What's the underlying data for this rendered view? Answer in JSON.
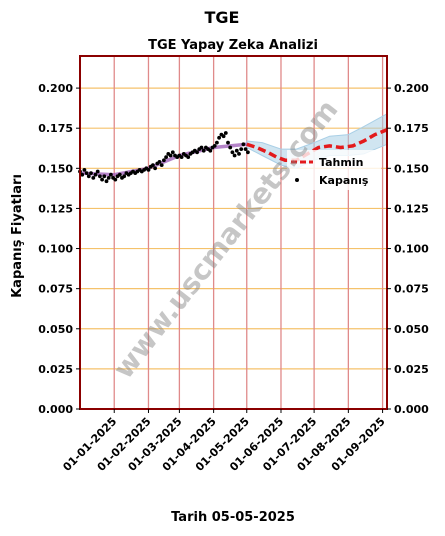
{
  "page_title": "TGE",
  "watermark": "www.uscmarkets.com",
  "colors": {
    "frame": "#8b0000",
    "hgrid": "#f5c26b",
    "vgrid": "#e08a8a",
    "observed": "#000000",
    "fitted": "#9b59b6",
    "forecast": "#e31a1c",
    "band": "#a9cfe6",
    "watermark": "#808080"
  },
  "chart_data": {
    "type": "line",
    "title": "TGE Yapay Zeka Analizi",
    "xlabel": "Tarih 05-05-2025",
    "ylabel": "Kapanış Fiyatları",
    "x_start": "2024-12-01",
    "x_end": "2025-09-05",
    "ylim": [
      0,
      0.22
    ],
    "yticks": [
      0.0,
      0.025,
      0.05,
      0.075,
      0.1,
      0.125,
      0.15,
      0.175,
      0.2
    ],
    "ytick_labels": [
      "0.000",
      "0.025",
      "0.050",
      "0.075",
      "0.100",
      "0.125",
      "0.150",
      "0.175",
      "0.200"
    ],
    "xticks": [
      "2025-01-01",
      "2025-02-01",
      "2025-03-01",
      "2025-04-01",
      "2025-05-01",
      "2025-06-01",
      "2025-07-01",
      "2025-08-01",
      "2025-09-01"
    ],
    "xtick_labels": [
      "01-01-2025",
      "01-02-2025",
      "01-03-2025",
      "01-04-2025",
      "01-05-2025",
      "01-06-2025",
      "01-07-2025",
      "01-08-2025",
      "01-09-2025"
    ],
    "grid": true,
    "legend_position": "center-right",
    "legend": [
      {
        "label": "Tahmin",
        "style": "dashed-line"
      },
      {
        "label": "Kapanış",
        "style": "dots"
      }
    ],
    "series": [
      {
        "name": "Kapanış",
        "style": "scatter",
        "points": [
          [
            "2024-12-01",
            0.148
          ],
          [
            "2024-12-03",
            0.146
          ],
          [
            "2024-12-05",
            0.149
          ],
          [
            "2024-12-07",
            0.147
          ],
          [
            "2024-12-09",
            0.145
          ],
          [
            "2024-12-11",
            0.147
          ],
          [
            "2024-12-13",
            0.144
          ],
          [
            "2024-12-15",
            0.146
          ],
          [
            "2024-12-17",
            0.148
          ],
          [
            "2024-12-19",
            0.145
          ],
          [
            "2024-12-21",
            0.143
          ],
          [
            "2024-12-23",
            0.145
          ],
          [
            "2024-12-25",
            0.142
          ],
          [
            "2024-12-27",
            0.144
          ],
          [
            "2024-12-29",
            0.146
          ],
          [
            "2024-12-31",
            0.144
          ],
          [
            "2025-01-02",
            0.143
          ],
          [
            "2025-01-04",
            0.145
          ],
          [
            "2025-01-06",
            0.146
          ],
          [
            "2025-01-08",
            0.144
          ],
          [
            "2025-01-10",
            0.145
          ],
          [
            "2025-01-12",
            0.147
          ],
          [
            "2025-01-14",
            0.146
          ],
          [
            "2025-01-16",
            0.147
          ],
          [
            "2025-01-18",
            0.148
          ],
          [
            "2025-01-20",
            0.147
          ],
          [
            "2025-01-22",
            0.148
          ],
          [
            "2025-01-24",
            0.149
          ],
          [
            "2025-01-26",
            0.148
          ],
          [
            "2025-01-28",
            0.149
          ],
          [
            "2025-01-30",
            0.15
          ],
          [
            "2025-02-01",
            0.149
          ],
          [
            "2025-02-03",
            0.151
          ],
          [
            "2025-02-05",
            0.152
          ],
          [
            "2025-02-07",
            0.15
          ],
          [
            "2025-02-09",
            0.153
          ],
          [
            "2025-02-11",
            0.154
          ],
          [
            "2025-02-13",
            0.152
          ],
          [
            "2025-02-15",
            0.155
          ],
          [
            "2025-02-17",
            0.157
          ],
          [
            "2025-02-19",
            0.159
          ],
          [
            "2025-02-21",
            0.158
          ],
          [
            "2025-02-23",
            0.16
          ],
          [
            "2025-02-25",
            0.158
          ],
          [
            "2025-02-27",
            0.157
          ],
          [
            "2025-03-01",
            0.158
          ],
          [
            "2025-03-03",
            0.157
          ],
          [
            "2025-03-05",
            0.159
          ],
          [
            "2025-03-07",
            0.158
          ],
          [
            "2025-03-09",
            0.157
          ],
          [
            "2025-03-11",
            0.159
          ],
          [
            "2025-03-13",
            0.16
          ],
          [
            "2025-03-15",
            0.161
          ],
          [
            "2025-03-17",
            0.16
          ],
          [
            "2025-03-19",
            0.162
          ],
          [
            "2025-03-21",
            0.163
          ],
          [
            "2025-03-23",
            0.161
          ],
          [
            "2025-03-25",
            0.163
          ],
          [
            "2025-03-27",
            0.162
          ],
          [
            "2025-03-29",
            0.161
          ],
          [
            "2025-03-31",
            0.163
          ],
          [
            "2025-04-02",
            0.164
          ],
          [
            "2025-04-04",
            0.166
          ],
          [
            "2025-04-06",
            0.169
          ],
          [
            "2025-04-08",
            0.171
          ],
          [
            "2025-04-10",
            0.17
          ],
          [
            "2025-04-12",
            0.172
          ],
          [
            "2025-04-14",
            0.166
          ],
          [
            "2025-04-16",
            0.163
          ],
          [
            "2025-04-18",
            0.16
          ],
          [
            "2025-04-20",
            0.158
          ],
          [
            "2025-04-22",
            0.161
          ],
          [
            "2025-04-24",
            0.159
          ],
          [
            "2025-04-26",
            0.162
          ],
          [
            "2025-04-28",
            0.165
          ],
          [
            "2025-04-30",
            0.162
          ],
          [
            "2025-05-02",
            0.16
          ]
        ]
      },
      {
        "name": "",
        "style": "fitted-line",
        "points": [
          [
            "2024-12-01",
            0.147
          ],
          [
            "2025-01-01",
            0.146
          ],
          [
            "2025-02-01",
            0.15
          ],
          [
            "2025-03-01",
            0.158
          ],
          [
            "2025-04-01",
            0.163
          ],
          [
            "2025-05-01",
            0.165
          ]
        ]
      },
      {
        "name": "Tahmin",
        "style": "dashed-line",
        "points": [
          [
            "2025-05-01",
            0.165
          ],
          [
            "2025-05-10",
            0.163
          ],
          [
            "2025-05-20",
            0.16
          ],
          [
            "2025-05-28",
            0.157
          ],
          [
            "2025-06-05",
            0.155
          ],
          [
            "2025-06-15",
            0.155
          ],
          [
            "2025-06-25",
            0.159
          ],
          [
            "2025-07-05",
            0.163
          ],
          [
            "2025-07-15",
            0.164
          ],
          [
            "2025-07-25",
            0.163
          ],
          [
            "2025-08-05",
            0.164
          ],
          [
            "2025-08-15",
            0.167
          ],
          [
            "2025-08-25",
            0.171
          ],
          [
            "2025-09-05",
            0.174
          ]
        ]
      },
      {
        "name": "",
        "style": "band",
        "upper": [
          [
            "2025-05-01",
            0.167
          ],
          [
            "2025-05-15",
            0.166
          ],
          [
            "2025-06-01",
            0.162
          ],
          [
            "2025-06-15",
            0.162
          ],
          [
            "2025-07-01",
            0.166
          ],
          [
            "2025-07-15",
            0.17
          ],
          [
            "2025-08-01",
            0.171
          ],
          [
            "2025-08-15",
            0.176
          ],
          [
            "2025-09-05",
            0.184
          ]
        ],
        "lower": [
          [
            "2025-05-01",
            0.163
          ],
          [
            "2025-05-15",
            0.158
          ],
          [
            "2025-06-01",
            0.152
          ],
          [
            "2025-06-15",
            0.15
          ],
          [
            "2025-07-01",
            0.155
          ],
          [
            "2025-07-15",
            0.158
          ],
          [
            "2025-08-01",
            0.158
          ],
          [
            "2025-08-15",
            0.159
          ],
          [
            "2025-09-05",
            0.165
          ]
        ]
      }
    ]
  }
}
